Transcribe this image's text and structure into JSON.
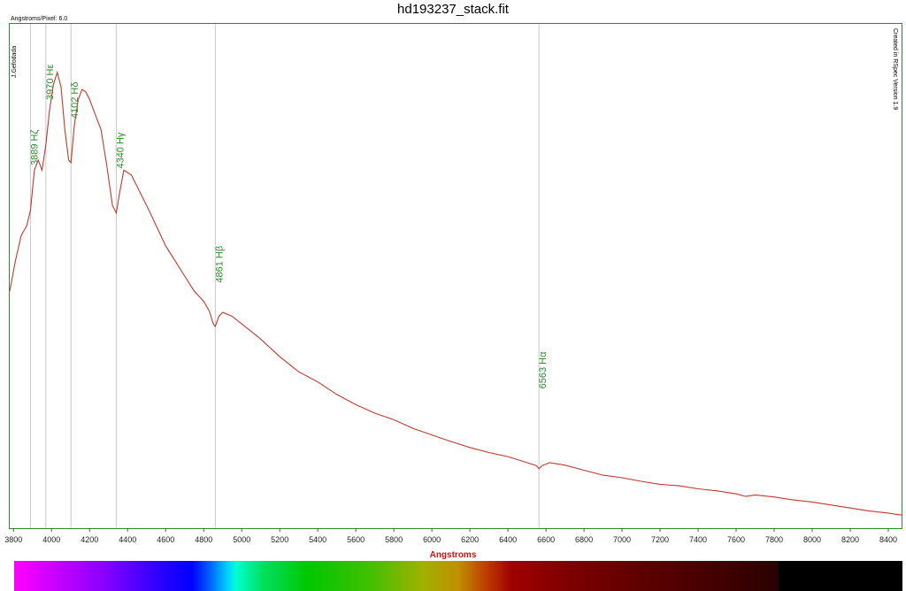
{
  "title": "hd193237_stack.fit",
  "subtitle": "Angstroms/Pixel: 6.0",
  "author": "J.Gefodada",
  "credit": "Created in RSpec Version 1.9",
  "chart_data": {
    "type": "line",
    "xlabel": "Angstroms",
    "ylabel": "",
    "xlim": [
      3780,
      8470
    ],
    "ylim": [
      0,
      1
    ],
    "xticks": [
      "3800",
      "4000",
      "4200",
      "4400",
      "4600",
      "4800",
      "5000",
      "5200",
      "5400",
      "5600",
      "5800",
      "6000",
      "6200",
      "6400",
      "6600",
      "6800",
      "7000",
      "7200",
      "7400",
      "7600",
      "7800",
      "8000",
      "8200",
      "8400"
    ],
    "grid": false,
    "line_color": "#c0392b",
    "annotation_color": "#2e8b2e",
    "series": [
      {
        "x": [
          3780,
          3810,
          3840,
          3870,
          3889,
          3910,
          3930,
          3950,
          3970,
          3990,
          4010,
          4030,
          4050,
          4070,
          4090,
          4102,
          4120,
          4140,
          4160,
          4180,
          4200,
          4230,
          4260,
          4290,
          4320,
          4340,
          4360,
          4380,
          4420,
          4460,
          4500,
          4550,
          4600,
          4650,
          4700,
          4750,
          4800,
          4830,
          4850,
          4861,
          4880,
          4900,
          4950,
          5000,
          5100,
          5200,
          5300,
          5400,
          5500,
          5600,
          5700,
          5800,
          5900,
          6000,
          6100,
          6200,
          6300,
          6400,
          6500,
          6550,
          6563,
          6580,
          6620,
          6700,
          6800,
          6900,
          7000,
          7100,
          7200,
          7300,
          7400,
          7500,
          7600,
          7650,
          7700,
          7800,
          7900,
          8000,
          8100,
          8200,
          8300,
          8400,
          8470
        ],
        "y": [
          0.47,
          0.53,
          0.58,
          0.6,
          0.63,
          0.71,
          0.73,
          0.71,
          0.76,
          0.83,
          0.88,
          0.904,
          0.875,
          0.79,
          0.73,
          0.725,
          0.8,
          0.85,
          0.87,
          0.865,
          0.85,
          0.82,
          0.79,
          0.72,
          0.64,
          0.625,
          0.67,
          0.71,
          0.7,
          0.67,
          0.64,
          0.6,
          0.56,
          0.53,
          0.5,
          0.47,
          0.45,
          0.43,
          0.405,
          0.4,
          0.42,
          0.428,
          0.42,
          0.405,
          0.375,
          0.34,
          0.31,
          0.29,
          0.265,
          0.245,
          0.228,
          0.215,
          0.198,
          0.185,
          0.172,
          0.16,
          0.15,
          0.142,
          0.13,
          0.124,
          0.118,
          0.124,
          0.13,
          0.125,
          0.115,
          0.105,
          0.1,
          0.093,
          0.087,
          0.084,
          0.078,
          0.074,
          0.068,
          0.063,
          0.066,
          0.062,
          0.056,
          0.052,
          0.046,
          0.04,
          0.034,
          0.03,
          0.026
        ]
      }
    ],
    "annotations": [
      {
        "x": 3889,
        "label": "3889 Hζ"
      },
      {
        "x": 3970,
        "label": "3970 Hε"
      },
      {
        "x": 4102,
        "label": "4102 Hδ"
      },
      {
        "x": 4340,
        "label": "4340 Hγ"
      },
      {
        "x": 4861,
        "label": "4861 Hβ"
      },
      {
        "x": 6563,
        "label": "6563 Hα"
      }
    ]
  }
}
